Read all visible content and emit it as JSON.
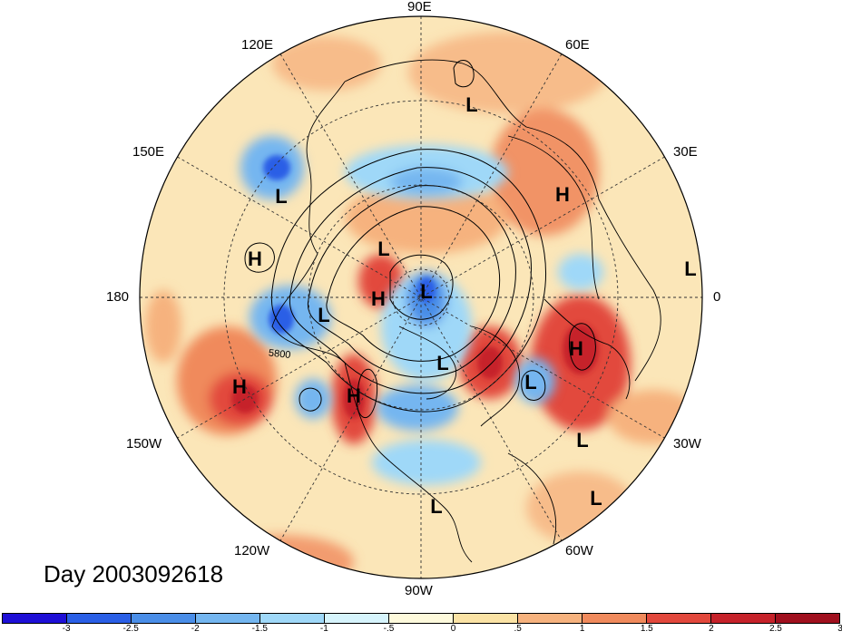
{
  "title": "Day 2003092618",
  "longitude_labels": {
    "top": "90E",
    "upper_left": "120E",
    "upper_right": "60E",
    "left_upper": "150E",
    "right_upper": "30E",
    "left": "180",
    "right": "0",
    "left_lower": "150W",
    "right_lower": "30W",
    "lower_left": "120W",
    "lower_right": "60W",
    "bottom": "90W"
  },
  "contour_label": "5800",
  "pressure_centers": [
    {
      "label": "L",
      "id": "l-siberia-north"
    },
    {
      "label": "L",
      "id": "l-far-east"
    },
    {
      "label": "H",
      "id": "h-pacific-west"
    },
    {
      "label": "L",
      "id": "l-east-siberia"
    },
    {
      "label": "H",
      "id": "h-europe"
    },
    {
      "label": "L",
      "id": "l-atlantic-east"
    },
    {
      "label": "H",
      "id": "h-arctic"
    },
    {
      "label": "L",
      "id": "l-pole"
    },
    {
      "label": "L",
      "id": "l-bering"
    },
    {
      "label": "L",
      "id": "l-canada"
    },
    {
      "label": "H",
      "id": "h-north-atlantic"
    },
    {
      "label": "L",
      "id": "l-north-atlantic"
    },
    {
      "label": "H",
      "id": "h-pacific-east"
    },
    {
      "label": "H",
      "id": "h-gulf-alaska"
    },
    {
      "label": "L",
      "id": "l-atlantic-mid"
    },
    {
      "label": "L",
      "id": "l-atlantic-south"
    },
    {
      "label": "L",
      "id": "l-caribbean"
    }
  ],
  "colorbar": {
    "colors": [
      "#1e0fd6",
      "#2a5fe6",
      "#4a8ee8",
      "#74b6f0",
      "#9fd8f8",
      "#d6f4fc",
      "#fefadc",
      "#fbe3a5",
      "#f6b27e",
      "#f08a5c",
      "#e2483c",
      "#c6222a",
      "#a0101e"
    ],
    "ticks": [
      "-3",
      "-2.5",
      "-2",
      "-1.5",
      "-1",
      "-.5",
      "0",
      ".5",
      "1",
      "1.5",
      "2",
      "2.5",
      "3"
    ]
  },
  "colors": {
    "background_disc": "#fbe6b8",
    "grid": "#333333",
    "contour": "#000000"
  }
}
